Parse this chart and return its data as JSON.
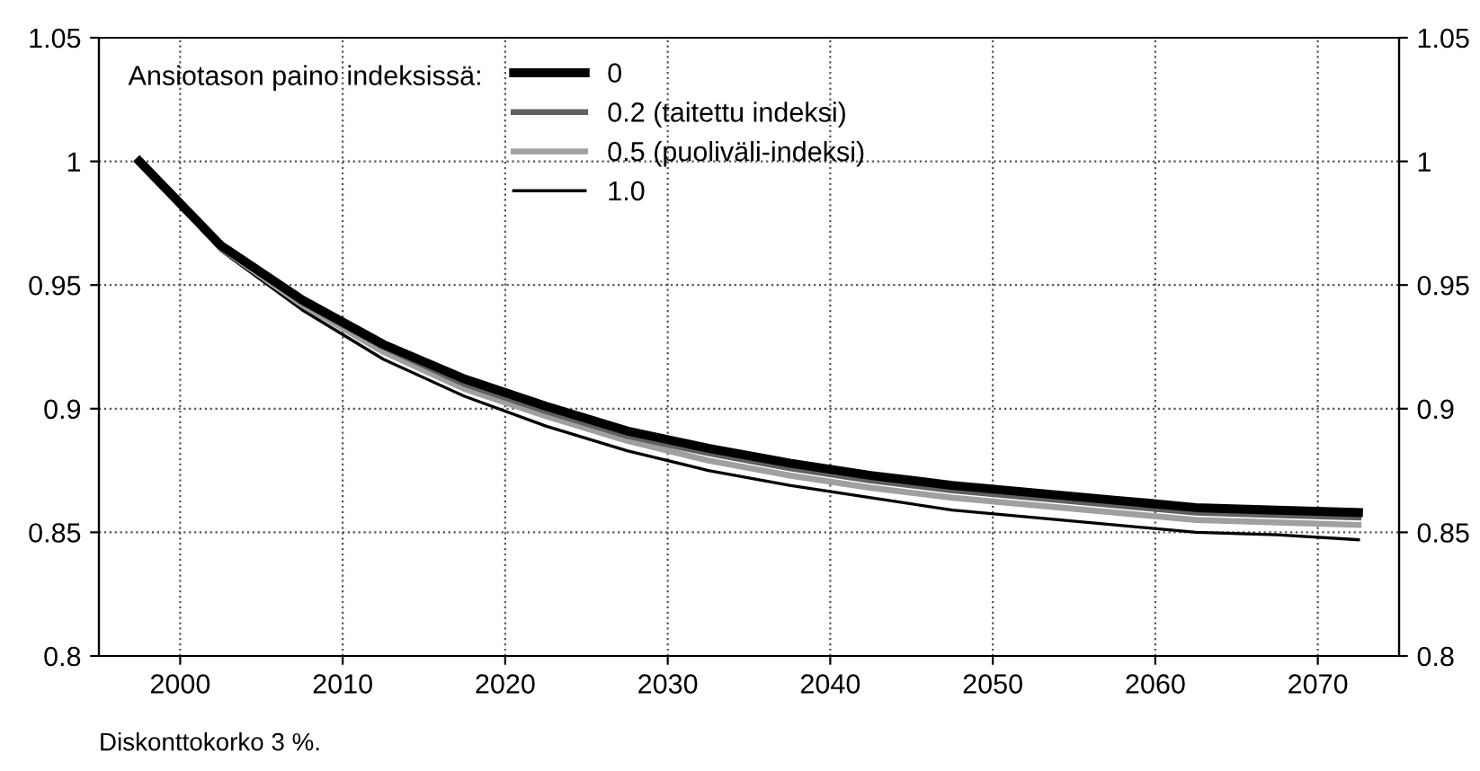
{
  "chart_data": {
    "type": "line",
    "legend_title": "Ansiotason paino indeksissä:",
    "annotations": [
      "Diskonttokorko 3 %."
    ],
    "x": [
      1997.5,
      2002.5,
      2007.5,
      2012.5,
      2017.5,
      2022.5,
      2027.5,
      2032.5,
      2037.5,
      2042.5,
      2047.5,
      2052.5,
      2057.5,
      2062.5,
      2067.5,
      2072.5
    ],
    "series": [
      {
        "name": "0",
        "color": "#000000",
        "values": [
          1.0,
          0.966,
          0.944,
          0.926,
          0.912,
          0.901,
          0.891,
          0.884,
          0.878,
          0.873,
          0.869,
          0.866,
          0.863,
          0.86,
          0.859,
          0.858
        ]
      },
      {
        "name": "0.2 (taitettu indeksi)",
        "color": "#606060",
        "values": [
          1.0,
          0.966,
          0.943,
          0.925,
          0.91,
          0.899,
          0.889,
          0.882,
          0.876,
          0.871,
          0.867,
          0.864,
          0.861,
          0.858,
          0.857,
          0.856
        ]
      },
      {
        "name": "0.5 (puoliväli-indeksi)",
        "color": "#a0a0a0",
        "values": [
          1.0,
          0.965,
          0.942,
          0.923,
          0.908,
          0.897,
          0.887,
          0.879,
          0.873,
          0.868,
          0.864,
          0.861,
          0.858,
          0.855,
          0.854,
          0.853
        ]
      },
      {
        "name": "1.0",
        "color": "#000000",
        "values": [
          1.0,
          0.964,
          0.94,
          0.92,
          0.905,
          0.893,
          0.883,
          0.875,
          0.869,
          0.864,
          0.859,
          0.856,
          0.853,
          0.85,
          0.849,
          0.847
        ]
      }
    ],
    "xlim": [
      1995,
      2075
    ],
    "xticks": [
      2000,
      2010,
      2020,
      2030,
      2040,
      2050,
      2060,
      2070
    ],
    "ylim": [
      0.8,
      1.05
    ],
    "yticks": [
      0.8,
      0.85,
      0.9,
      0.95,
      1,
      1.05
    ],
    "y2lim": [
      0.8,
      1.05
    ],
    "y2ticks": [
      0.8,
      0.85,
      0.9,
      0.95,
      1,
      1.05
    ],
    "grid": true,
    "legend": "top left",
    "line_style": "solid",
    "marker": "none"
  }
}
